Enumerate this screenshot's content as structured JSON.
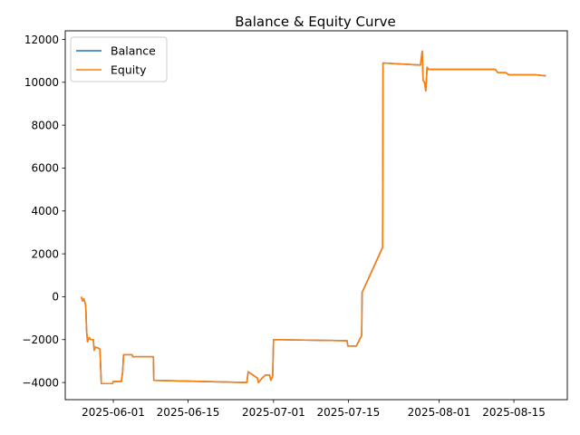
{
  "chart_data": {
    "type": "line",
    "title": "Balance & Equity Curve",
    "xlabel": "",
    "ylabel": "",
    "x_axis_type": "date",
    "xlim": [
      "2025-05-23",
      "2025-08-25"
    ],
    "ylim": [
      -4800,
      12400
    ],
    "x_ticks": [
      "2025-06-01",
      "2025-06-15",
      "2025-07-01",
      "2025-07-15",
      "2025-08-01",
      "2025-08-15"
    ],
    "y_ticks": [
      -4000,
      -2000,
      0,
      2000,
      4000,
      6000,
      8000,
      10000,
      12000
    ],
    "grid": false,
    "legend": {
      "position": "top-left",
      "entries": [
        "Balance",
        "Equity"
      ]
    },
    "series": [
      {
        "name": "Balance",
        "color": "#1f77b4",
        "points": [
          [
            "2025-05-26 00:00",
            0
          ],
          [
            "2025-05-26 06:00",
            -200
          ],
          [
            "2025-05-26 12:00",
            -100
          ],
          [
            "2025-05-26 20:00",
            -400
          ],
          [
            "2025-05-27 00:00",
            -1600
          ],
          [
            "2025-05-27 04:00",
            -2100
          ],
          [
            "2025-05-27 12:00",
            -1900
          ],
          [
            "2025-05-27 18:00",
            -2000
          ],
          [
            "2025-05-28 06:00",
            -2000
          ],
          [
            "2025-05-28 10:00",
            -2500
          ],
          [
            "2025-05-28 16:00",
            -2350
          ],
          [
            "2025-05-29 06:00",
            -2400
          ],
          [
            "2025-05-29 12:00",
            -2450
          ],
          [
            "2025-05-29 18:00",
            -4050
          ],
          [
            "2025-05-31 20:00",
            -4050
          ],
          [
            "2025-06-01 00:00",
            -3950
          ],
          [
            "2025-06-02 12:00",
            -3950
          ],
          [
            "2025-06-02 18:00",
            -3500
          ],
          [
            "2025-06-02 22:00",
            -2700
          ],
          [
            "2025-06-04 12:00",
            -2700
          ],
          [
            "2025-06-04 16:00",
            -2800
          ],
          [
            "2025-06-08 12:00",
            -2800
          ],
          [
            "2025-06-08 14:00",
            -3900
          ],
          [
            "2025-06-26 00:00",
            -4000
          ],
          [
            "2025-06-26 06:00",
            -3500
          ],
          [
            "2025-06-28 00:00",
            -3800
          ],
          [
            "2025-06-28 04:00",
            -4000
          ],
          [
            "2025-06-28 20:00",
            -3800
          ],
          [
            "2025-06-29 12:00",
            -3650
          ],
          [
            "2025-06-30 06:00",
            -3650
          ],
          [
            "2025-06-30 12:00",
            -3900
          ],
          [
            "2025-06-30 20:00",
            -3700
          ],
          [
            "2025-07-01 00:00",
            -2000
          ],
          [
            "2025-07-14 18:00",
            -2050
          ],
          [
            "2025-07-14 22:00",
            -2300
          ],
          [
            "2025-07-16 12:00",
            -2300
          ],
          [
            "2025-07-17 12:00",
            -1800
          ],
          [
            "2025-07-17 14:00",
            200
          ],
          [
            "2025-07-21 10:00",
            2300
          ],
          [
            "2025-07-21 12:00",
            10900
          ],
          [
            "2025-07-28 12:00",
            10800
          ],
          [
            "2025-07-28 20:00",
            11450
          ],
          [
            "2025-07-29 00:00",
            10100
          ],
          [
            "2025-07-29 06:00",
            10000
          ],
          [
            "2025-07-29 12:00",
            9600
          ],
          [
            "2025-07-29 18:00",
            10700
          ],
          [
            "2025-07-30 00:00",
            10600
          ],
          [
            "2025-08-11 12:00",
            10600
          ],
          [
            "2025-08-12 00:00",
            10450
          ],
          [
            "2025-08-13 12:00",
            10450
          ],
          [
            "2025-08-14 00:00",
            10350
          ],
          [
            "2025-08-19 00:00",
            10350
          ],
          [
            "2025-08-21 00:00",
            10300
          ]
        ]
      },
      {
        "name": "Equity",
        "color": "#ff7f0e",
        "points": [
          [
            "2025-05-26 00:00",
            0
          ],
          [
            "2025-05-26 06:00",
            -200
          ],
          [
            "2025-05-26 12:00",
            -100
          ],
          [
            "2025-05-26 20:00",
            -400
          ],
          [
            "2025-05-27 00:00",
            -1600
          ],
          [
            "2025-05-27 04:00",
            -2100
          ],
          [
            "2025-05-27 12:00",
            -1900
          ],
          [
            "2025-05-27 18:00",
            -2000
          ],
          [
            "2025-05-28 06:00",
            -2000
          ],
          [
            "2025-05-28 10:00",
            -2500
          ],
          [
            "2025-05-28 16:00",
            -2350
          ],
          [
            "2025-05-29 06:00",
            -2400
          ],
          [
            "2025-05-29 12:00",
            -2450
          ],
          [
            "2025-05-29 18:00",
            -4050
          ],
          [
            "2025-05-31 20:00",
            -4050
          ],
          [
            "2025-06-01 00:00",
            -3950
          ],
          [
            "2025-06-02 12:00",
            -3950
          ],
          [
            "2025-06-02 18:00",
            -3500
          ],
          [
            "2025-06-02 22:00",
            -2700
          ],
          [
            "2025-06-04 12:00",
            -2700
          ],
          [
            "2025-06-04 16:00",
            -2800
          ],
          [
            "2025-06-08 12:00",
            -2800
          ],
          [
            "2025-06-08 14:00",
            -3900
          ],
          [
            "2025-06-26 00:00",
            -4000
          ],
          [
            "2025-06-26 06:00",
            -3500
          ],
          [
            "2025-06-28 00:00",
            -3800
          ],
          [
            "2025-06-28 04:00",
            -4000
          ],
          [
            "2025-06-28 20:00",
            -3800
          ],
          [
            "2025-06-29 12:00",
            -3650
          ],
          [
            "2025-06-30 06:00",
            -3650
          ],
          [
            "2025-06-30 12:00",
            -3900
          ],
          [
            "2025-06-30 20:00",
            -3700
          ],
          [
            "2025-07-01 00:00",
            -2000
          ],
          [
            "2025-07-14 18:00",
            -2050
          ],
          [
            "2025-07-14 22:00",
            -2300
          ],
          [
            "2025-07-16 12:00",
            -2300
          ],
          [
            "2025-07-17 12:00",
            -1800
          ],
          [
            "2025-07-17 14:00",
            200
          ],
          [
            "2025-07-21 10:00",
            2300
          ],
          [
            "2025-07-21 12:00",
            10900
          ],
          [
            "2025-07-28 12:00",
            10800
          ],
          [
            "2025-07-28 20:00",
            11450
          ],
          [
            "2025-07-29 00:00",
            10100
          ],
          [
            "2025-07-29 06:00",
            10000
          ],
          [
            "2025-07-29 12:00",
            9600
          ],
          [
            "2025-07-29 18:00",
            10700
          ],
          [
            "2025-07-30 00:00",
            10600
          ],
          [
            "2025-08-11 12:00",
            10600
          ],
          [
            "2025-08-12 00:00",
            10450
          ],
          [
            "2025-08-13 12:00",
            10450
          ],
          [
            "2025-08-14 00:00",
            10350
          ],
          [
            "2025-08-19 00:00",
            10350
          ],
          [
            "2025-08-21 00:00",
            10300
          ]
        ]
      }
    ]
  }
}
